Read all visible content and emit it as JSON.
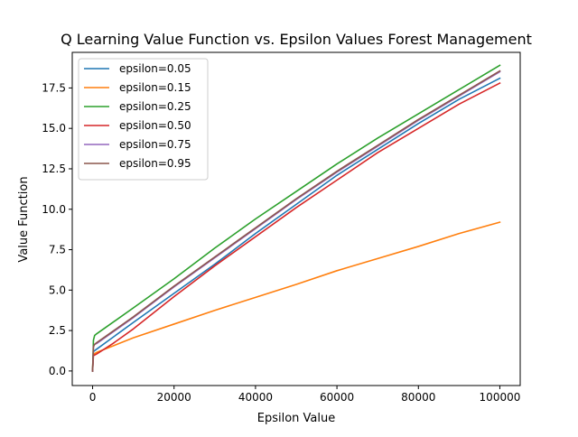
{
  "chart_data": {
    "type": "line",
    "title": "Q Learning Value Function vs. Epsilon Values Forest Management",
    "xlabel": "Epsilon Value",
    "ylabel": "Value Function",
    "xlim": [
      -5000,
      105000
    ],
    "ylim": [
      -0.9,
      19.7
    ],
    "x_ticks": [
      0,
      20000,
      40000,
      60000,
      80000,
      100000
    ],
    "x_tick_labels": [
      "0",
      "20000",
      "40000",
      "60000",
      "80000",
      "100000"
    ],
    "y_ticks": [
      0.0,
      2.5,
      5.0,
      7.5,
      10.0,
      12.5,
      15.0,
      17.5
    ],
    "y_tick_labels": [
      "0.0",
      "2.5",
      "5.0",
      "7.5",
      "10.0",
      "12.5",
      "15.0",
      "17.5"
    ],
    "grid": false,
    "legend_position": "top-left",
    "series": [
      {
        "name": "epsilon=0.05",
        "color": "#1f77b4",
        "x": [
          0,
          200,
          1000,
          10000,
          20000,
          30000,
          40000,
          50000,
          60000,
          70000,
          80000,
          90000,
          100000
        ],
        "y": [
          0.0,
          1.2,
          1.35,
          3.0,
          4.8,
          6.6,
          8.5,
          10.3,
          12.1,
          13.7,
          15.3,
          16.8,
          18.1
        ]
      },
      {
        "name": "epsilon=0.15",
        "color": "#ff7f0e",
        "x": [
          0,
          100,
          300,
          1000,
          10000,
          20000,
          30000,
          40000,
          50000,
          60000,
          70000,
          80000,
          90000,
          100000
        ],
        "y": [
          0.0,
          0.9,
          1.05,
          1.15,
          2.05,
          2.9,
          3.75,
          4.55,
          5.35,
          6.2,
          6.95,
          7.7,
          8.5,
          9.2
        ]
      },
      {
        "name": "epsilon=0.25",
        "color": "#2ca02c",
        "x": [
          0,
          200,
          500,
          1000,
          10000,
          20000,
          30000,
          40000,
          50000,
          60000,
          70000,
          80000,
          90000,
          100000
        ],
        "y": [
          0.0,
          1.9,
          2.2,
          2.3,
          3.9,
          5.7,
          7.6,
          9.4,
          11.1,
          12.8,
          14.4,
          15.9,
          17.4,
          18.9
        ]
      },
      {
        "name": "epsilon=0.50",
        "color": "#d62728",
        "x": [
          0,
          200,
          1000,
          5000,
          10000,
          20000,
          30000,
          40000,
          50000,
          60000,
          70000,
          80000,
          90000,
          100000
        ],
        "y": [
          0.0,
          0.95,
          1.05,
          1.7,
          2.6,
          4.6,
          6.5,
          8.3,
          10.1,
          11.8,
          13.5,
          15.0,
          16.5,
          17.8
        ]
      },
      {
        "name": "epsilon=0.75",
        "color": "#9467bd",
        "x": [
          0,
          200,
          500,
          1000,
          10000,
          20000,
          30000,
          40000,
          50000,
          60000,
          70000,
          80000,
          90000,
          100000
        ],
        "y": [
          0.0,
          1.5,
          1.65,
          1.7,
          3.3,
          5.2,
          7.0,
          8.8,
          10.6,
          12.3,
          13.9,
          15.5,
          17.0,
          18.5
        ]
      },
      {
        "name": "epsilon=0.95",
        "color": "#8c564b",
        "x": [
          0,
          200,
          500,
          1000,
          10000,
          20000,
          30000,
          40000,
          50000,
          60000,
          70000,
          80000,
          90000,
          100000
        ],
        "y": [
          0.0,
          1.5,
          1.65,
          1.75,
          3.35,
          5.25,
          7.05,
          8.85,
          10.65,
          12.35,
          13.95,
          15.55,
          17.05,
          18.55
        ]
      }
    ]
  }
}
